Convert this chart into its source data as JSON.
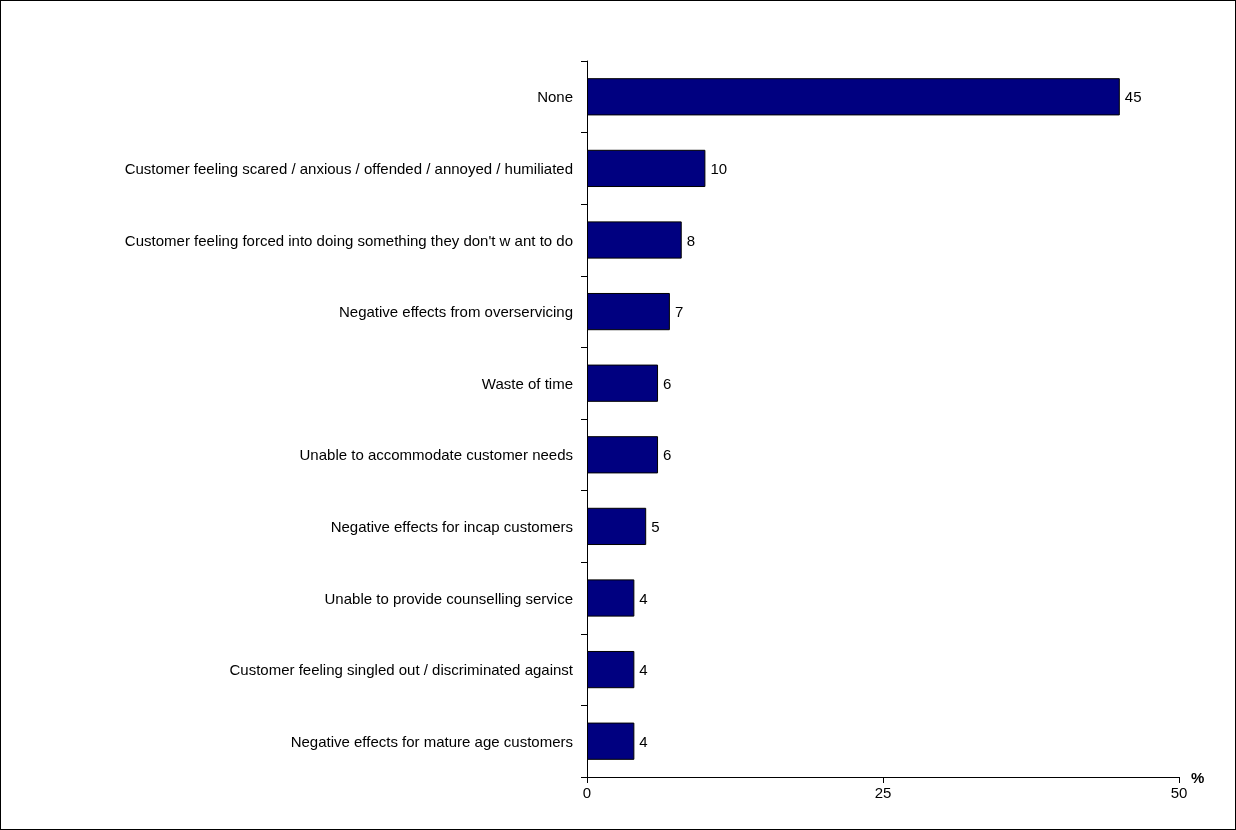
{
  "chart_data": {
    "type": "bar",
    "orientation": "horizontal",
    "categories": [
      "None",
      "Customer feeling scared / anxious / offended / annoyed / humiliated",
      "Customer feeling forced into doing something they don't w ant to do",
      "Negative effects from overservicing",
      "Waste of time",
      "Unable to accommodate customer needs",
      "Negative effects for incap customers",
      "Unable to provide counselling service",
      "Customer feeling singled out / discriminated against",
      "Negative effects for mature age customers"
    ],
    "values": [
      45,
      10,
      8,
      7,
      6,
      6,
      5,
      4,
      4,
      4
    ],
    "color": "#000080",
    "xlabel": "%",
    "xlim": [
      0,
      50
    ],
    "xticks": [
      0,
      25,
      50
    ],
    "data_labels": true,
    "grid": false
  }
}
